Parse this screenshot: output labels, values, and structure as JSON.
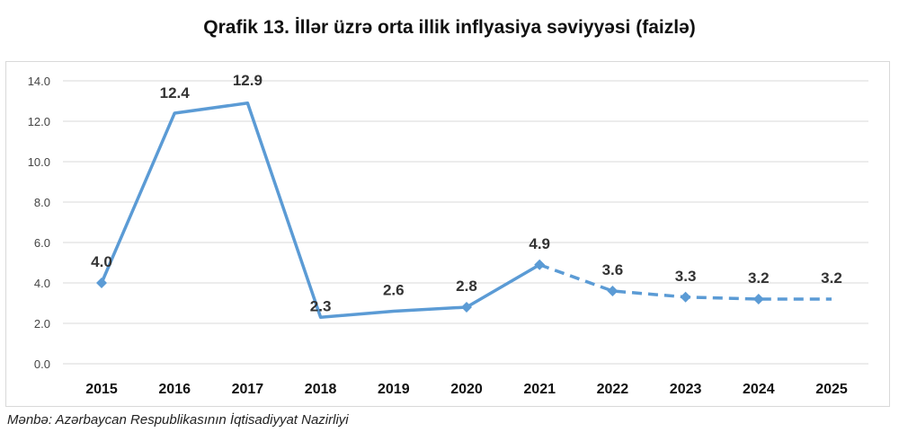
{
  "chart_data": {
    "type": "line",
    "title": "Qrafik 13. İllər üzrə orta illik inflyasiya səviyyəsi (faizlə)",
    "xlabel": "",
    "ylabel": "",
    "categories": [
      "2015",
      "2016",
      "2017",
      "2018",
      "2019",
      "2020",
      "2021",
      "2022",
      "2023",
      "2024",
      "2025"
    ],
    "values": [
      4.0,
      12.4,
      12.9,
      2.3,
      2.6,
      2.8,
      4.9,
      3.6,
      3.3,
      3.2,
      3.2
    ],
    "data_labels": [
      "4.0",
      "12.4",
      "12.9",
      "2.3",
      "2.6",
      "2.8",
      "4.9",
      "3.6",
      "3.3",
      "3.2",
      "3.2"
    ],
    "solid_until": "2021",
    "dashed_from": "2021",
    "ylim": [
      0,
      14
    ],
    "yticks": [
      "0.0",
      "2.0",
      "4.0",
      "6.0",
      "8.0",
      "10.0",
      "12.0",
      "14.0"
    ],
    "grid": true,
    "legend": "none",
    "line_color": "#5b9bd5"
  },
  "source": "Mənbə: Azərbaycan Respublikasının İqtisadiyyat Nazirliyi"
}
